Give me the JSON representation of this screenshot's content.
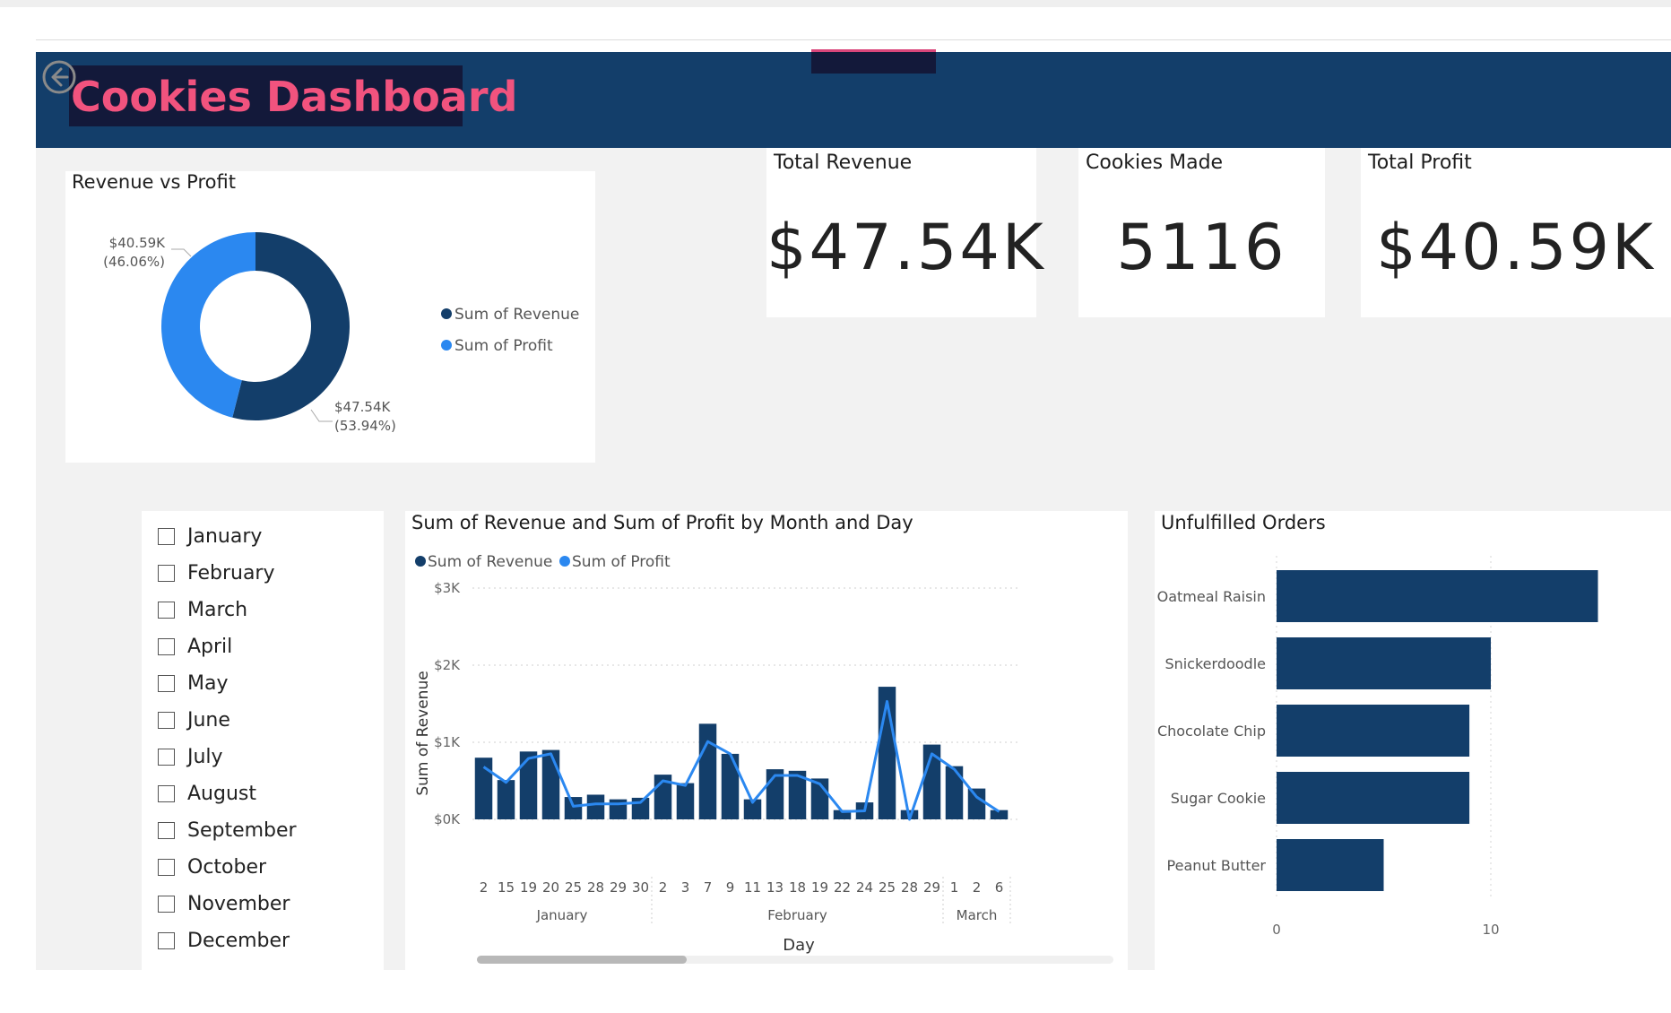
{
  "header": {
    "title": "Cookies Dashboard",
    "back_icon": "back-arrow-icon",
    "colors": {
      "bar": "#133e6a",
      "title_bg": "#13193a",
      "title_text": "#f1537e"
    }
  },
  "donut": {
    "title": "Revenue vs Profit",
    "legend": [
      "Sum of Revenue",
      "Sum of Profit"
    ],
    "labels": {
      "profit_value": "$40.59K",
      "profit_pct": "(46.06%)",
      "revenue_value": "$47.54K",
      "revenue_pct": "(53.94%)"
    }
  },
  "kpis": {
    "revenue": {
      "label": "Total Revenue",
      "value": "$47.54K"
    },
    "made": {
      "label": "Cookies Made",
      "value": "5116"
    },
    "profit": {
      "label": "Total Profit",
      "value": "$40.59K"
    }
  },
  "slicer": {
    "months": [
      "January",
      "February",
      "March",
      "April",
      "May",
      "June",
      "July",
      "August",
      "September",
      "October",
      "November",
      "December"
    ]
  },
  "combo": {
    "title": "Sum of Revenue and Sum of Profit by Month and Day",
    "legend": [
      "Sum of Revenue",
      "Sum of Profit"
    ],
    "xlabel": "Day",
    "ylabel": "Sum of Revenue",
    "month_labels": [
      "January",
      "February",
      "March"
    ]
  },
  "orders": {
    "title": "Unfulfilled Orders"
  },
  "chart_data": [
    {
      "type": "pie",
      "title": "Revenue vs Profit",
      "categories": [
        "Sum of Revenue",
        "Sum of Profit"
      ],
      "values": [
        47540,
        40590
      ],
      "legend": "right",
      "colors": [
        "#133e6a",
        "#2b88f0"
      ]
    },
    {
      "type": "bar",
      "title": "Sum of Revenue and Sum of Profit by Month and Day",
      "xlabel": "Day",
      "ylabel": "Sum of Revenue",
      "ylim": [
        0,
        3000
      ],
      "y_ticks": [
        "$0K",
        "$1K",
        "$2K",
        "$3K"
      ],
      "y_tick_values": [
        0,
        1000,
        2000,
        3000
      ],
      "legend": "top-left",
      "groups": [
        {
          "month": "January",
          "days": [
            "2",
            "15",
            "19",
            "20",
            "25",
            "28",
            "29",
            "30"
          ]
        },
        {
          "month": "February",
          "days": [
            "2",
            "3",
            "7",
            "9",
            "11",
            "13",
            "18",
            "19",
            "22",
            "24",
            "25",
            "28",
            "29"
          ]
        },
        {
          "month": "March",
          "days": [
            "1",
            "2",
            "6"
          ]
        }
      ],
      "series": [
        {
          "name": "Sum of Revenue",
          "type": "bar",
          "color": "#133e6a",
          "values": [
            800,
            510,
            880,
            900,
            290,
            320,
            260,
            280,
            580,
            470,
            1240,
            850,
            260,
            650,
            630,
            530,
            120,
            220,
            1720,
            120,
            970,
            690,
            400,
            120
          ]
        },
        {
          "name": "Sum of Profit",
          "type": "line",
          "color": "#2b88f0",
          "values": [
            680,
            480,
            790,
            850,
            170,
            200,
            200,
            220,
            500,
            440,
            1010,
            850,
            220,
            570,
            570,
            460,
            100,
            110,
            1530,
            0,
            850,
            650,
            290,
            100
          ]
        }
      ]
    },
    {
      "type": "bar",
      "orientation": "horizontal",
      "title": "Unfulfilled Orders",
      "categories": [
        "Oatmeal Raisin",
        "Snickerdoodle",
        "Chocolate Chip",
        "Sugar Cookie",
        "Peanut Butter"
      ],
      "values": [
        15,
        10,
        9,
        9,
        5
      ],
      "x_ticks": [
        "0",
        "10"
      ],
      "x_tick_values": [
        0,
        10
      ],
      "xlim": [
        0,
        15
      ],
      "color": "#133e6a"
    }
  ]
}
